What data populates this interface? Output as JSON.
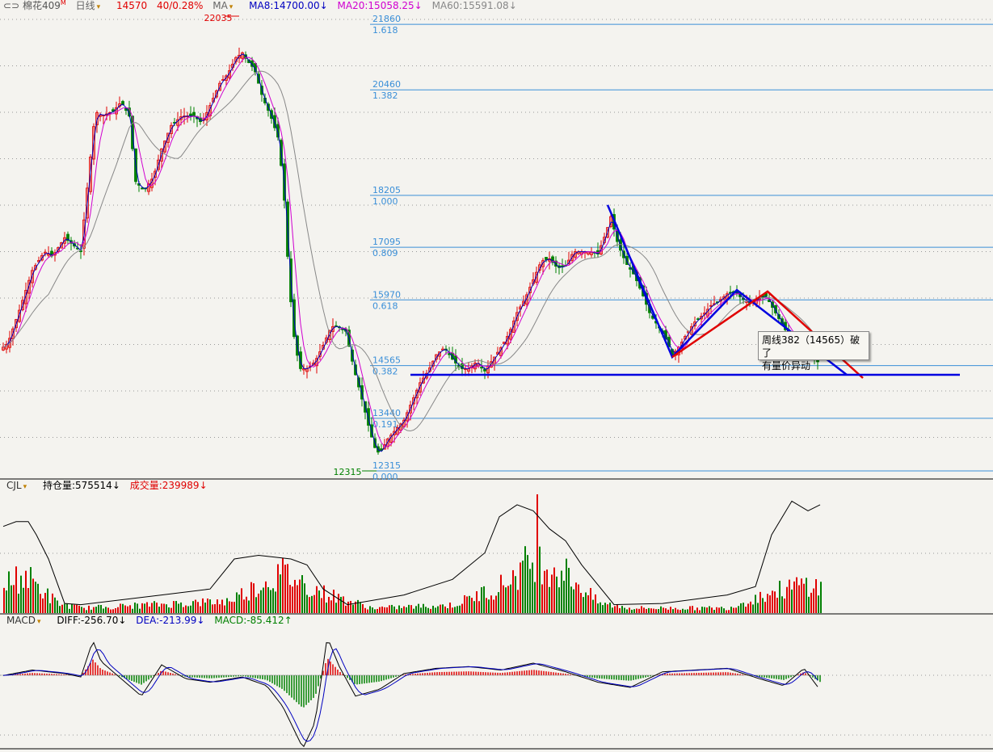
{
  "header": {
    "symbol": "棉花409",
    "symbol_marker": "M",
    "period": "日线",
    "price": "14570",
    "change": "40/0.28%",
    "ma_label": "MA",
    "ma8": "MA8:14700.00↓",
    "ma20": "MA20:15058.25↓",
    "ma60": "MA60:15591.08↓"
  },
  "volume_panel": {
    "name": "CJL",
    "open_interest": "持仓量:575514↓",
    "volume": "成交量:239989↓"
  },
  "macd_panel": {
    "name": "MACD",
    "diff": "DIFF:-256.70↓",
    "dea": "DEA:-213.99↓",
    "macd": "MACD:-85.412↑"
  },
  "annotation": {
    "line1": "周线382（14565）破了",
    "line2": "有量价异动"
  },
  "colors": {
    "up": "#e00000",
    "down": "#008000",
    "fib": "#3a8fd8",
    "trend_blue": "#0000e0",
    "trend_red": "#e00000",
    "ma8": "#0000c0",
    "ma20": "#d000d0",
    "ma60": "#888888"
  },
  "chart_data": {
    "type": "candlestick",
    "price_axis": [
      12315,
      22035
    ],
    "high_label": "22035",
    "low_label": "12315",
    "fib_levels": [
      {
        "price": "21860",
        "ratio": "1.618",
        "value": 21860
      },
      {
        "price": "20460",
        "ratio": "1.382",
        "value": 20460
      },
      {
        "price": "18205",
        "ratio": "1.000",
        "value": 18205
      },
      {
        "price": "17095",
        "ratio": "0.809",
        "value": 17095
      },
      {
        "price": "15970",
        "ratio": "0.618",
        "value": 15970
      },
      {
        "price": "14565",
        "ratio": "0.382",
        "value": 14565
      },
      {
        "price": "13440",
        "ratio": "0.191",
        "value": 13440
      },
      {
        "price": "12315",
        "ratio": "0.000",
        "value": 12315
      }
    ],
    "close_path": [
      [
        0,
        14900
      ],
      [
        10,
        15050
      ],
      [
        25,
        15800
      ],
      [
        40,
        16600
      ],
      [
        55,
        17000
      ],
      [
        65,
        16900
      ],
      [
        80,
        17300
      ],
      [
        100,
        17000
      ],
      [
        110,
        18700
      ],
      [
        118,
        20000
      ],
      [
        125,
        19900
      ],
      [
        140,
        20000
      ],
      [
        150,
        20200
      ],
      [
        160,
        19900
      ],
      [
        168,
        18500
      ],
      [
        178,
        18300
      ],
      [
        190,
        18600
      ],
      [
        200,
        19200
      ],
      [
        212,
        19700
      ],
      [
        225,
        19900
      ],
      [
        240,
        19900
      ],
      [
        250,
        19750
      ],
      [
        262,
        20200
      ],
      [
        272,
        20600
      ],
      [
        282,
        20800
      ],
      [
        292,
        21150
      ],
      [
        300,
        21250
      ],
      [
        305,
        21100
      ],
      [
        315,
        20900
      ],
      [
        325,
        20300
      ],
      [
        335,
        19900
      ],
      [
        345,
        19400
      ],
      [
        352,
        18100
      ],
      [
        358,
        16300
      ],
      [
        365,
        15000
      ],
      [
        372,
        14500
      ],
      [
        380,
        14500
      ],
      [
        390,
        14650
      ],
      [
        400,
        15000
      ],
      [
        410,
        15400
      ],
      [
        418,
        15400
      ],
      [
        428,
        15300
      ],
      [
        438,
        14500
      ],
      [
        448,
        13850
      ],
      [
        458,
        13150
      ],
      [
        466,
        12700
      ],
      [
        472,
        12750
      ],
      [
        480,
        13000
      ],
      [
        490,
        13200
      ],
      [
        500,
        13400
      ],
      [
        510,
        13800
      ],
      [
        520,
        14200
      ],
      [
        530,
        14450
      ],
      [
        540,
        14800
      ],
      [
        550,
        14950
      ],
      [
        560,
        14700
      ],
      [
        570,
        14500
      ],
      [
        580,
        14500
      ],
      [
        590,
        14650
      ],
      [
        600,
        14450
      ],
      [
        610,
        14700
      ],
      [
        620,
        14950
      ],
      [
        630,
        15250
      ],
      [
        640,
        15700
      ],
      [
        650,
        16000
      ],
      [
        660,
        16400
      ],
      [
        670,
        16800
      ],
      [
        680,
        16850
      ],
      [
        690,
        16650
      ],
      [
        700,
        16700
      ],
      [
        710,
        17000
      ],
      [
        720,
        17000
      ],
      [
        730,
        17000
      ],
      [
        740,
        16950
      ],
      [
        750,
        17400
      ],
      [
        756,
        17750
      ],
      [
        765,
        17150
      ],
      [
        775,
        16750
      ],
      [
        785,
        16500
      ],
      [
        795,
        16100
      ],
      [
        805,
        15650
      ],
      [
        815,
        15400
      ],
      [
        825,
        15100
      ],
      [
        832,
        14800
      ],
      [
        840,
        14950
      ],
      [
        850,
        15250
      ],
      [
        860,
        15500
      ],
      [
        870,
        15650
      ],
      [
        880,
        15850
      ],
      [
        890,
        15950
      ],
      [
        900,
        16100
      ],
      [
        910,
        16150
      ],
      [
        918,
        16000
      ],
      [
        928,
        15900
      ],
      [
        938,
        16000
      ],
      [
        948,
        16050
      ],
      [
        958,
        15750
      ],
      [
        968,
        15450
      ],
      [
        978,
        15150
      ],
      [
        988,
        15050
      ],
      [
        998,
        14900
      ],
      [
        1008,
        14750
      ],
      [
        1015,
        14570
      ]
    ],
    "trend_lines": [
      {
        "color": "blue",
        "points": [
          [
            752,
            18000
          ],
          [
            832,
            14750
          ],
          [
            912,
            16180
          ],
          [
            1048,
            14370
          ]
        ]
      },
      {
        "color": "red",
        "points": [
          [
            832,
            14750
          ],
          [
            950,
            16150
          ],
          [
            1068,
            14300
          ]
        ]
      }
    ],
    "support_line": {
      "value": 14370,
      "x_range": [
        508,
        1188
      ]
    },
    "volume_peaks": [
      [
        0,
        0.28
      ],
      [
        30,
        0.38
      ],
      [
        70,
        0.1
      ],
      [
        100,
        0.05
      ],
      [
        280,
        0.12
      ],
      [
        350,
        0.4
      ],
      [
        400,
        0.2
      ],
      [
        460,
        0.05
      ],
      [
        560,
        0.08
      ],
      [
        620,
        0.28
      ],
      [
        660,
        0.55
      ],
      [
        700,
        0.4
      ],
      [
        740,
        0.1
      ],
      [
        780,
        0.05
      ],
      [
        900,
        0.05
      ],
      [
        950,
        0.2
      ],
      [
        1000,
        0.3
      ],
      [
        1015,
        0.25
      ]
    ],
    "open_interest_path": [
      [
        4,
        0.72
      ],
      [
        20,
        0.76
      ],
      [
        35,
        0.76
      ],
      [
        45,
        0.65
      ],
      [
        60,
        0.45
      ],
      [
        80,
        0.08
      ],
      [
        100,
        0.07
      ],
      [
        200,
        0.15
      ],
      [
        260,
        0.2
      ],
      [
        290,
        0.45
      ],
      [
        320,
        0.48
      ],
      [
        360,
        0.45
      ],
      [
        380,
        0.4
      ],
      [
        400,
        0.2
      ],
      [
        430,
        0.07
      ],
      [
        500,
        0.15
      ],
      [
        560,
        0.28
      ],
      [
        600,
        0.5
      ],
      [
        618,
        0.8
      ],
      [
        640,
        0.9
      ],
      [
        660,
        0.85
      ],
      [
        680,
        0.7
      ],
      [
        700,
        0.6
      ],
      [
        720,
        0.4
      ],
      [
        760,
        0.07
      ],
      [
        820,
        0.08
      ],
      [
        900,
        0.15
      ],
      [
        935,
        0.22
      ],
      [
        955,
        0.65
      ],
      [
        980,
        0.93
      ],
      [
        1000,
        0.85
      ],
      [
        1015,
        0.9
      ]
    ],
    "macd_path": [
      [
        0,
        -5
      ],
      [
        40,
        30
      ],
      [
        80,
        10
      ],
      [
        100,
        -10
      ],
      [
        115,
        200
      ],
      [
        125,
        80
      ],
      [
        150,
        -20
      ],
      [
        175,
        -120
      ],
      [
        200,
        60
      ],
      [
        230,
        -20
      ],
      [
        260,
        -40
      ],
      [
        300,
        -10
      ],
      [
        330,
        -60
      ],
      [
        350,
        -180
      ],
      [
        375,
        -420
      ],
      [
        390,
        -270
      ],
      [
        405,
        220
      ],
      [
        420,
        50
      ],
      [
        440,
        -120
      ],
      [
        470,
        -80
      ],
      [
        500,
        10
      ],
      [
        540,
        40
      ],
      [
        580,
        50
      ],
      [
        620,
        30
      ],
      [
        660,
        70
      ],
      [
        700,
        20
      ],
      [
        740,
        -40
      ],
      [
        780,
        -70
      ],
      [
        820,
        20
      ],
      [
        860,
        30
      ],
      [
        900,
        40
      ],
      [
        940,
        -20
      ],
      [
        970,
        -60
      ],
      [
        995,
        40
      ],
      [
        1015,
        -85
      ]
    ]
  }
}
